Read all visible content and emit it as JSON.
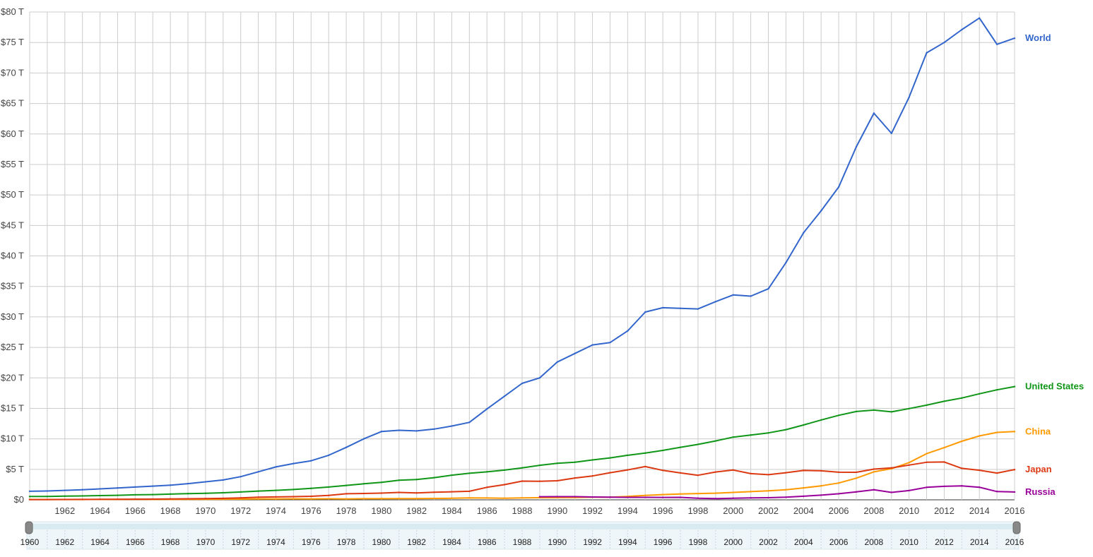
{
  "chart_data": {
    "type": "line",
    "title": "",
    "xlabel": "",
    "ylabel": "",
    "xlim": [
      1960,
      2016
    ],
    "ylim": [
      0,
      80
    ],
    "grid": true,
    "legend": "inline-right",
    "y_ticks": [
      "$0",
      "$5 T",
      "$10 T",
      "$15 T",
      "$20 T",
      "$25 T",
      "$30 T",
      "$35 T",
      "$40 T",
      "$45 T",
      "$50 T",
      "$55 T",
      "$60 T",
      "$65 T",
      "$70 T",
      "$75 T",
      "$80 T"
    ],
    "x_ticks": [
      "1962",
      "1964",
      "1966",
      "1968",
      "1970",
      "1972",
      "1974",
      "1976",
      "1978",
      "1980",
      "1982",
      "1984",
      "1986",
      "1988",
      "1990",
      "1992",
      "1994",
      "1996",
      "1998",
      "2000",
      "2002",
      "2004",
      "2006",
      "2008",
      "2010",
      "2012",
      "2014",
      "2016"
    ],
    "x": [
      1960,
      1961,
      1962,
      1963,
      1964,
      1965,
      1966,
      1967,
      1968,
      1969,
      1970,
      1971,
      1972,
      1973,
      1974,
      1975,
      1976,
      1977,
      1978,
      1979,
      1980,
      1981,
      1982,
      1983,
      1984,
      1985,
      1986,
      1987,
      1988,
      1989,
      1990,
      1991,
      1992,
      1993,
      1994,
      1995,
      1996,
      1997,
      1998,
      1999,
      2000,
      2001,
      2002,
      2003,
      2004,
      2005,
      2006,
      2007,
      2008,
      2009,
      2010,
      2011,
      2012,
      2013,
      2014,
      2015,
      2016
    ],
    "series": [
      {
        "name": "World",
        "color": "#3366cc",
        "values": [
          1.4,
          1.45,
          1.55,
          1.65,
          1.8,
          1.95,
          2.1,
          2.25,
          2.4,
          2.65,
          2.95,
          3.25,
          3.8,
          4.6,
          5.4,
          5.95,
          6.4,
          7.3,
          8.6,
          10.0,
          11.2,
          11.4,
          11.3,
          11.6,
          12.1,
          12.7,
          14.9,
          17.0,
          19.1,
          20.0,
          22.6,
          24.0,
          25.4,
          25.8,
          27.7,
          30.8,
          31.5,
          31.4,
          31.3,
          32.5,
          33.6,
          33.4,
          34.6,
          38.9,
          43.8,
          47.4,
          51.3,
          57.9,
          63.4,
          60.1,
          66.0,
          73.3,
          75.0,
          77.1,
          79.0,
          74.7,
          75.7
        ]
      },
      {
        "name": "United States",
        "color": "#109618",
        "values": [
          0.54,
          0.56,
          0.6,
          0.64,
          0.69,
          0.74,
          0.82,
          0.86,
          0.94,
          1.02,
          1.07,
          1.16,
          1.28,
          1.43,
          1.55,
          1.69,
          1.88,
          2.09,
          2.36,
          2.63,
          2.86,
          3.21,
          3.34,
          3.64,
          4.04,
          4.35,
          4.59,
          4.87,
          5.25,
          5.66,
          5.98,
          6.17,
          6.54,
          6.88,
          7.31,
          7.66,
          8.1,
          8.61,
          9.09,
          9.66,
          10.28,
          10.62,
          10.98,
          11.51,
          12.27,
          13.09,
          13.86,
          14.48,
          14.72,
          14.42,
          14.96,
          15.52,
          16.16,
          16.69,
          17.39,
          18.04,
          18.57
        ]
      },
      {
        "name": "China",
        "color": "#ff9900",
        "values": [
          0.06,
          0.05,
          0.05,
          0.05,
          0.06,
          0.07,
          0.08,
          0.07,
          0.07,
          0.08,
          0.09,
          0.1,
          0.11,
          0.14,
          0.14,
          0.16,
          0.15,
          0.17,
          0.15,
          0.18,
          0.19,
          0.2,
          0.2,
          0.23,
          0.26,
          0.31,
          0.3,
          0.27,
          0.31,
          0.35,
          0.36,
          0.38,
          0.43,
          0.44,
          0.56,
          0.73,
          0.86,
          0.96,
          1.03,
          1.09,
          1.21,
          1.34,
          1.47,
          1.66,
          1.96,
          2.29,
          2.75,
          3.55,
          4.59,
          5.1,
          6.1,
          7.57,
          8.56,
          9.61,
          10.48,
          11.06,
          11.19
        ]
      },
      {
        "name": "Japan",
        "color": "#dc3912",
        "values": [
          0.04,
          0.05,
          0.06,
          0.07,
          0.08,
          0.09,
          0.1,
          0.12,
          0.15,
          0.17,
          0.21,
          0.24,
          0.31,
          0.43,
          0.48,
          0.52,
          0.58,
          0.72,
          0.99,
          1.04,
          1.1,
          1.22,
          1.13,
          1.24,
          1.32,
          1.4,
          2.05,
          2.49,
          3.07,
          3.05,
          3.13,
          3.58,
          3.91,
          4.45,
          4.91,
          5.45,
          4.83,
          4.41,
          4.03,
          4.56,
          4.89,
          4.3,
          4.12,
          4.45,
          4.82,
          4.76,
          4.53,
          4.52,
          5.04,
          5.23,
          5.7,
          6.16,
          6.2,
          5.16,
          4.85,
          4.39,
          4.95
        ]
      },
      {
        "name": "Russia",
        "color": "#990099",
        "start": 1989,
        "values": [
          null,
          null,
          null,
          null,
          null,
          null,
          null,
          null,
          null,
          null,
          null,
          null,
          null,
          null,
          null,
          null,
          null,
          null,
          null,
          null,
          null,
          null,
          null,
          null,
          null,
          null,
          null,
          null,
          null,
          0.51,
          0.52,
          0.52,
          0.46,
          0.44,
          0.4,
          0.4,
          0.39,
          0.4,
          0.27,
          0.2,
          0.26,
          0.31,
          0.35,
          0.43,
          0.59,
          0.76,
          0.99,
          1.3,
          1.66,
          1.22,
          1.52,
          2.05,
          2.21,
          2.29,
          2.06,
          1.36,
          1.28
        ]
      }
    ]
  },
  "range_selector": {
    "start_label": "1960",
    "end_label": "2016",
    "ticks": [
      "1962",
      "1964",
      "1966",
      "1968",
      "1970",
      "1972",
      "1974",
      "1976",
      "1978",
      "1980",
      "1982",
      "1984",
      "1986",
      "1988",
      "1990",
      "1992",
      "1994",
      "1996",
      "1998",
      "2000",
      "2002",
      "2004",
      "2006",
      "2008",
      "2010",
      "2012",
      "2014"
    ]
  }
}
